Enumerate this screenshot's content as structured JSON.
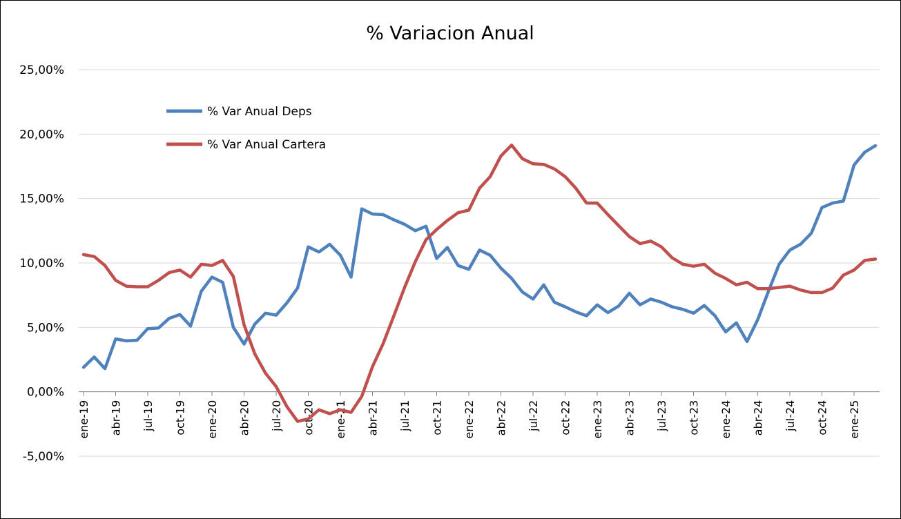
{
  "chart_data": {
    "type": "line",
    "title": "% Variacion Anual",
    "ylim": [
      -5,
      25
    ],
    "y_step": 5,
    "y_tick_labels": [
      "-5,00%",
      "0,00%",
      "5,00%",
      "10,00%",
      "15,00%",
      "20,00%",
      "25,00%"
    ],
    "grid": "horizontal",
    "legend_position": "top-left",
    "x_tick_labels": [
      "ene-19",
      "abr-19",
      "jul-19",
      "oct-19",
      "ene-20",
      "abr-20",
      "jul-20",
      "oct-20",
      "ene-21",
      "abr-21",
      "jul-21",
      "oct-21",
      "ene-22",
      "abr-22",
      "jul-22",
      "oct-22",
      "ene-23",
      "abr-23",
      "jul-23",
      "oct-23",
      "ene-24",
      "abr-24",
      "jul-24",
      "oct-24",
      "ene-25"
    ],
    "x_tick_every": 3,
    "series": [
      {
        "name": "% Var Anual Deps",
        "color": "#4F81BD",
        "values": [
          1.9,
          2.7,
          1.8,
          4.1,
          3.95,
          4.0,
          4.9,
          4.95,
          5.7,
          6.0,
          5.1,
          7.8,
          8.9,
          8.5,
          5.0,
          3.7,
          5.25,
          6.1,
          5.95,
          6.9,
          8.05,
          11.25,
          10.85,
          11.45,
          10.6,
          8.9,
          14.2,
          13.8,
          13.75,
          13.35,
          13.0,
          12.5,
          12.85,
          10.35,
          11.2,
          9.8,
          9.5,
          11.0,
          10.6,
          9.6,
          8.8,
          7.75,
          7.2,
          8.3,
          6.95,
          6.6,
          6.2,
          5.9,
          6.75,
          6.15,
          6.65,
          7.65,
          6.75,
          7.2,
          6.95,
          6.6,
          6.4,
          6.1,
          6.7,
          5.9,
          4.65,
          5.35,
          3.9,
          5.6,
          7.8,
          9.9,
          11.0,
          11.45,
          12.3,
          14.3,
          14.65,
          14.8,
          17.6,
          18.6,
          19.1
        ]
      },
      {
        "name": "% Var Anual Cartera",
        "color": "#C0504D",
        "values": [
          10.65,
          10.5,
          9.8,
          8.65,
          8.2,
          8.15,
          8.15,
          8.65,
          9.25,
          9.45,
          8.9,
          9.9,
          9.8,
          10.2,
          8.95,
          5.2,
          2.95,
          1.45,
          0.4,
          -1.15,
          -2.3,
          -2.1,
          -1.4,
          -1.7,
          -1.4,
          -1.6,
          -0.35,
          1.95,
          3.75,
          5.9,
          8.1,
          10.1,
          11.8,
          12.6,
          13.3,
          13.9,
          14.1,
          15.8,
          16.7,
          18.3,
          19.15,
          18.1,
          17.7,
          17.65,
          17.3,
          16.7,
          15.8,
          14.65,
          14.65,
          13.75,
          12.9,
          12.05,
          11.5,
          11.7,
          11.25,
          10.4,
          9.9,
          9.75,
          9.9,
          9.2,
          8.8,
          8.3,
          8.5,
          8.0,
          8.0,
          8.1,
          8.2,
          7.9,
          7.7,
          7.7,
          8.05,
          9.05,
          9.45,
          10.2,
          10.3
        ]
      }
    ]
  }
}
